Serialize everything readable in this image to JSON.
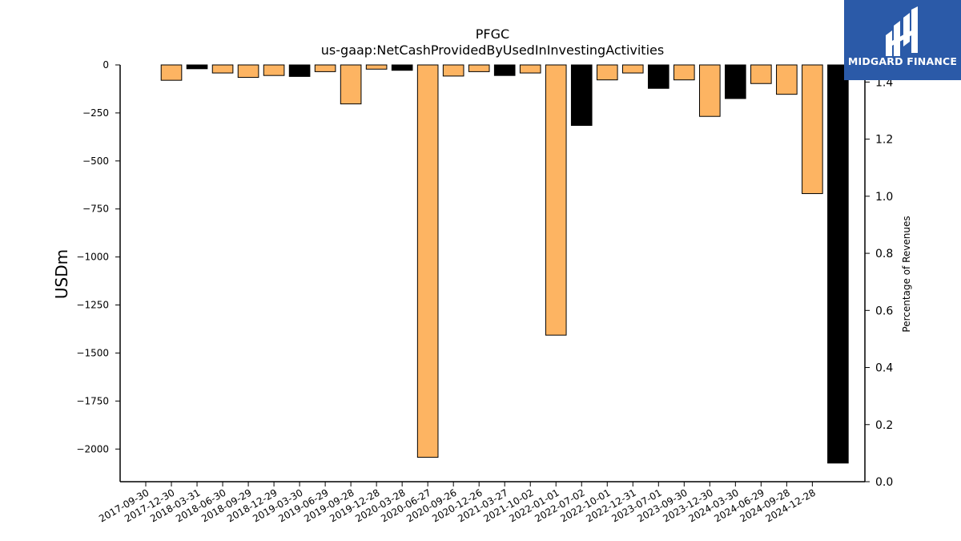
{
  "chart_data": {
    "type": "bar",
    "title": "PFGC",
    "subtitle": "us-gaap:NetCashProvidedByUsedInInvestingActivities",
    "ylabel": "USDm",
    "y2label": "Percentage of Revenues",
    "ylim": [
      -2170,
      0
    ],
    "y2lim": [
      0.0,
      1.46
    ],
    "yticks": [
      0,
      -250,
      -500,
      -750,
      -1000,
      -1250,
      -1500,
      -1750,
      -2000
    ],
    "y2ticks": [
      0.0,
      0.2,
      0.4,
      0.6,
      0.8,
      1.0,
      1.2,
      1.4
    ],
    "categories": [
      "2017-09-30",
      "2017-12-30",
      "2018-03-31",
      "2018-06-30",
      "2018-09-29",
      "2018-12-29",
      "2019-03-30",
      "2019-06-29",
      "2019-09-28",
      "2019-12-28",
      "2020-03-28",
      "2020-06-27",
      "2020-09-26",
      "2020-12-26",
      "2021-03-27",
      "2021-10-02",
      "2022-01-01",
      "2022-07-02",
      "2022-10-01",
      "2022-12-31",
      "2023-07-01",
      "2023-09-30",
      "2023-12-30",
      "2024-03-30",
      "2024-06-29",
      "2024-09-28",
      "2024-12-28"
    ],
    "tick_offset": 1,
    "values": [
      -80,
      -20,
      -42,
      -65,
      -55,
      -60,
      -35,
      -203,
      -22,
      -28,
      -2043,
      -58,
      -35,
      -55,
      -42,
      -1407,
      -315,
      -78,
      -42,
      -122,
      -78,
      -268,
      -175,
      -97,
      -153,
      -670,
      -2073
    ],
    "colors": [
      "#fdb462",
      "#000000",
      "#fdb462",
      "#fdb462",
      "#fdb462",
      "#000000",
      "#fdb462",
      "#fdb462",
      "#fdb462",
      "#000000",
      "#fdb462",
      "#fdb462",
      "#fdb462",
      "#000000",
      "#fdb462",
      "#fdb462",
      "#000000",
      "#fdb462",
      "#fdb462",
      "#000000",
      "#fdb462",
      "#fdb462",
      "#000000",
      "#fdb462",
      "#fdb462",
      "#fdb462",
      "#000000"
    ]
  },
  "logo": {
    "text": "MIDGARD FINANCE"
  }
}
